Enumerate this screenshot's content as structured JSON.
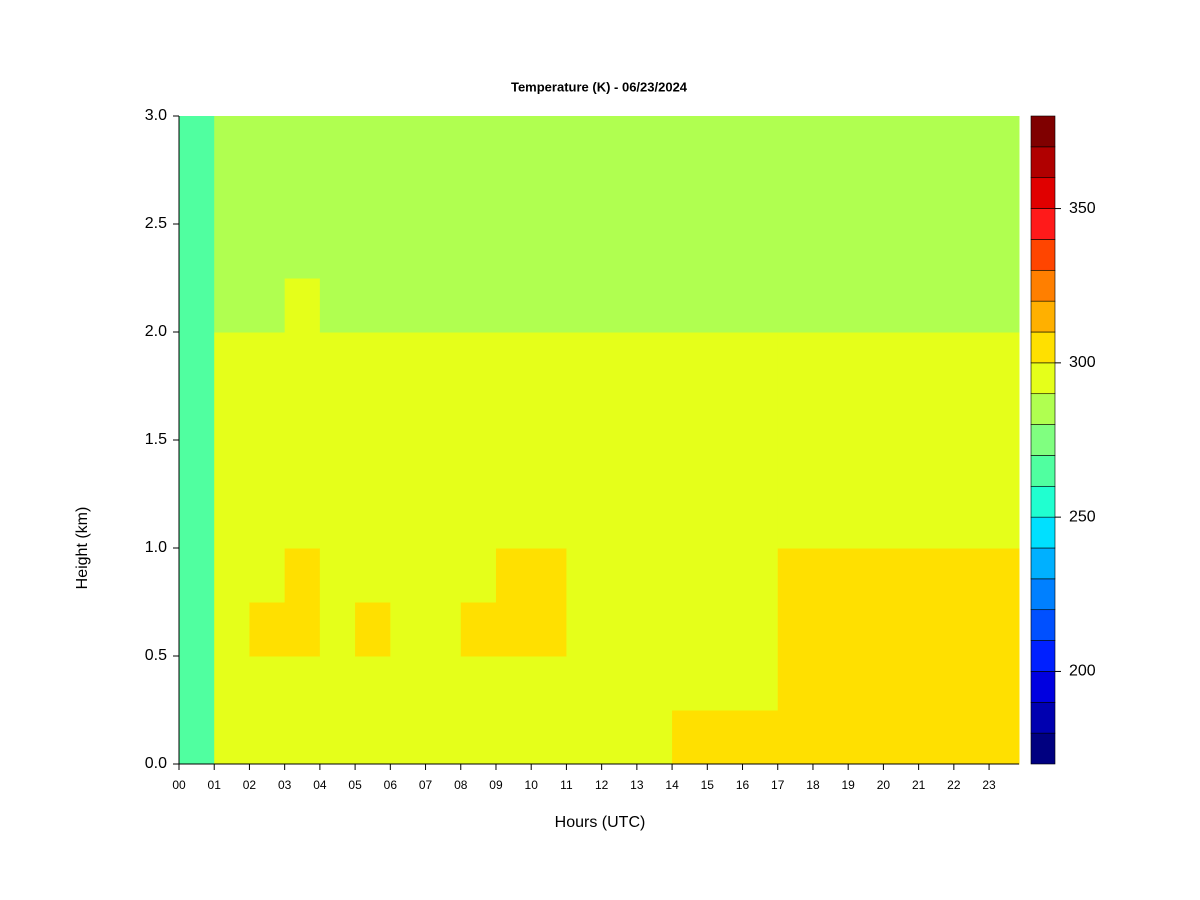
{
  "chart_data": {
    "type": "heatmap",
    "title": "Temperature (K) - 06/23/2024",
    "x_label": "Hours (UTC)",
    "y_label": "Height (km)",
    "xlim": [
      0,
      23.85
    ],
    "xticks": [
      {
        "value": 0,
        "label": "00"
      },
      {
        "value": 1,
        "label": "01"
      },
      {
        "value": 2,
        "label": "02"
      },
      {
        "value": 3,
        "label": "03"
      },
      {
        "value": 4,
        "label": "04"
      },
      {
        "value": 5,
        "label": "05"
      },
      {
        "value": 6,
        "label": "06"
      },
      {
        "value": 7,
        "label": "07"
      },
      {
        "value": 8,
        "label": "08"
      },
      {
        "value": 9,
        "label": "09"
      },
      {
        "value": 10,
        "label": "10"
      },
      {
        "value": 11,
        "label": "11"
      },
      {
        "value": 12,
        "label": "12"
      },
      {
        "value": 13,
        "label": "13"
      },
      {
        "value": 14,
        "label": "14"
      },
      {
        "value": 15,
        "label": "15"
      },
      {
        "value": 16,
        "label": "16"
      },
      {
        "value": 17,
        "label": "17"
      },
      {
        "value": 18,
        "label": "18"
      },
      {
        "value": 19,
        "label": "19"
      },
      {
        "value": 20,
        "label": "20"
      },
      {
        "value": 21,
        "label": "21"
      },
      {
        "value": 22,
        "label": "22"
      },
      {
        "value": 23,
        "label": "23"
      }
    ],
    "ylim": [
      0,
      3
    ],
    "yticks": [
      {
        "value": 0,
        "label": "0.0"
      },
      0.5,
      {
        "value": 1,
        "label": "1.0"
      },
      1.5,
      {
        "value": 2,
        "label": "2.0"
      },
      2.5,
      {
        "value": 3,
        "label": "3.0"
      }
    ],
    "x_edges": [
      0,
      1,
      2,
      3,
      4,
      5,
      6,
      7,
      8,
      9,
      10,
      11,
      12,
      13,
      14,
      15,
      16,
      17,
      18,
      19,
      20,
      21,
      22,
      23,
      23.85
    ],
    "y_edges": [
      0,
      0.25,
      0.5,
      0.75,
      1,
      1.25,
      1.5,
      1.75,
      2,
      2.25,
      2.5,
      2.75,
      3
    ],
    "z": [
      [
        260,
        295,
        295,
        295,
        295,
        295,
        295,
        295,
        295,
        295,
        295,
        295,
        295,
        295,
        301,
        302,
        303,
        303,
        303,
        303,
        303,
        303,
        303,
        303
      ],
      [
        260,
        295,
        295,
        295,
        295,
        295,
        295,
        295,
        295,
        295,
        295,
        295,
        295,
        295,
        295,
        295,
        295,
        303,
        303,
        303,
        303,
        303,
        303,
        303
      ],
      [
        260,
        297,
        302,
        302,
        297,
        302,
        297,
        297,
        302,
        302,
        302,
        297,
        297,
        297,
        297,
        297,
        297,
        303,
        303,
        303,
        303,
        303,
        303,
        303
      ],
      [
        260,
        297,
        297,
        302,
        297,
        297,
        297,
        297,
        297,
        302,
        302,
        297,
        297,
        297,
        297,
        297,
        297,
        303,
        303,
        303,
        303,
        303,
        303,
        303
      ],
      [
        260,
        296,
        296,
        296,
        296,
        296,
        296,
        296,
        296,
        296,
        296,
        296,
        296,
        296,
        296,
        296,
        296,
        296,
        296,
        296,
        296,
        296,
        296,
        296
      ],
      [
        260,
        295,
        295,
        295,
        295,
        295,
        295,
        295,
        295,
        295,
        295,
        295,
        295,
        295,
        295,
        295,
        295,
        295,
        295,
        295,
        295,
        295,
        295,
        295
      ],
      [
        260,
        295,
        295,
        295,
        295,
        295,
        295,
        295,
        295,
        295,
        295,
        295,
        295,
        295,
        295,
        295,
        295,
        295,
        295,
        295,
        295,
        295,
        295,
        295
      ],
      [
        260,
        295,
        295,
        295,
        295,
        295,
        295,
        295,
        295,
        295,
        295,
        295,
        295,
        295,
        295,
        295,
        295,
        295,
        295,
        295,
        295,
        295,
        295,
        295
      ],
      [
        260,
        288,
        288,
        292,
        288,
        288,
        288,
        288,
        288,
        288,
        288,
        288,
        288,
        288,
        288,
        288,
        288,
        288,
        288,
        288,
        288,
        288,
        288,
        288
      ],
      [
        260,
        288,
        288,
        288,
        288,
        288,
        288,
        288,
        288,
        288,
        288,
        288,
        288,
        288,
        288,
        288,
        288,
        288,
        288,
        288,
        288,
        288,
        288,
        288
      ],
      [
        260,
        288,
        288,
        288,
        288,
        288,
        288,
        288,
        288,
        288,
        288,
        288,
        288,
        288,
        288,
        288,
        288,
        288,
        288,
        288,
        288,
        288,
        288,
        288
      ],
      [
        260,
        288,
        288,
        288,
        288,
        288,
        288,
        288,
        288,
        288,
        288,
        288,
        288,
        288,
        288,
        288,
        288,
        288,
        288,
        288,
        288,
        288,
        288,
        288
      ]
    ],
    "clim": [
      170,
      380
    ],
    "cticks": [
      200,
      250,
      300,
      350
    ],
    "colors": [
      "#000080",
      "#0000b0",
      "#0000e0",
      "#0020ff",
      "#0050ff",
      "#0080ff",
      "#00b0ff",
      "#00e0ff",
      "#20ffd0",
      "#50ffa0",
      "#80ff80",
      "#b0ff50",
      "#e5ff1a",
      "#ffe000",
      "#ffb000",
      "#ff7f00",
      "#ff4500",
      "#ff1a1a",
      "#e00000",
      "#b00000",
      "#7f0000"
    ]
  }
}
